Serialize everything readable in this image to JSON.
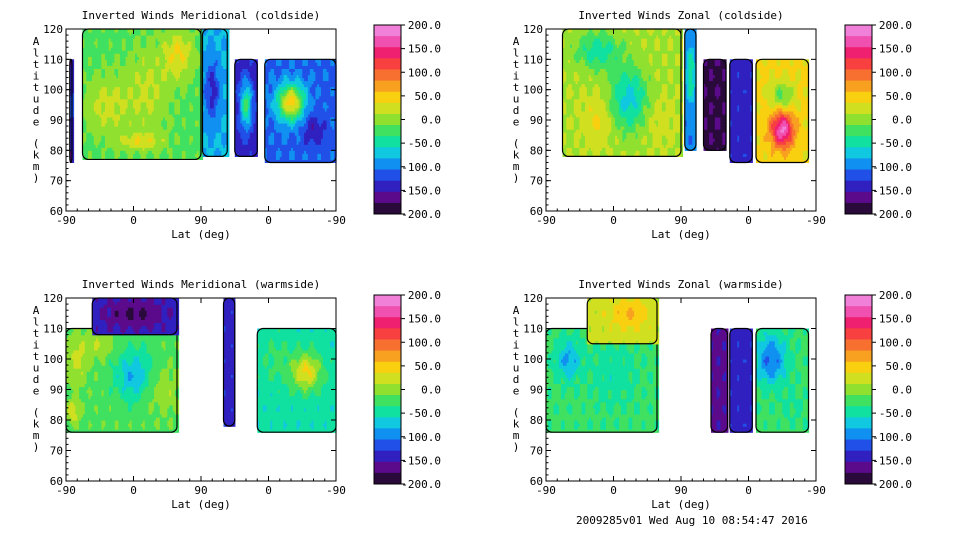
{
  "footer_text": "2009285v01 Wed Aug 10 08:54:47 2016",
  "colorbar": {
    "ticks": [
      "200.0",
      "150.0",
      "100.0",
      "50.0",
      "0.0",
      "-50.0",
      "-100.0",
      "-150.0",
      "-200.0"
    ],
    "colors": [
      "#2a0a3a",
      "#5a0a8a",
      "#3020c0",
      "#2050e8",
      "#1090f0",
      "#10c8e0",
      "#10e0a0",
      "#40e060",
      "#90e030",
      "#d0e020",
      "#f8d010",
      "#f8a020",
      "#f87030",
      "#f84040",
      "#f02070",
      "#f050b0",
      "#f080d8"
    ]
  },
  "chart_data": [
    {
      "type": "heatmap",
      "title": "Inverted Winds Meridional (coldside)",
      "xlabel": "Lat (deg)",
      "ylabel": "Altitude (km)",
      "x_ticks": [
        "-90",
        "0",
        "90",
        "0",
        "-90"
      ],
      "y_ticks": [
        "60",
        "70",
        "80",
        "90",
        "100",
        "110",
        "120"
      ],
      "ylim": [
        60,
        120
      ],
      "zlim": [
        -200,
        200
      ],
      "segments": [
        {
          "x": [
            -85,
            -82
          ],
          "y": [
            76,
            110
          ],
          "base": -150,
          "blobs": [
            [
              -83,
              95,
              6,
              8,
              30
            ]
          ]
        },
        {
          "x": [
            -68,
            90
          ],
          "y": [
            77,
            120
          ],
          "base": -20,
          "blobs": [
            [
              -35,
              95,
              30,
              10,
              40
            ],
            [
              20,
              100,
              30,
              15,
              35
            ],
            [
              60,
              112,
              20,
              8,
              55
            ],
            [
              10,
              83,
              30,
              3,
              45
            ]
          ]
        },
        {
          "x": [
            92,
            125
          ],
          "y": [
            78,
            120
          ],
          "base": -80,
          "blobs": [
            [
              105,
              100,
              10,
              10,
              -60
            ]
          ]
        },
        {
          "x": [
            135,
            165
          ],
          "y": [
            78,
            110
          ],
          "base": -140,
          "blobs": [
            [
              150,
              95,
              8,
              8,
              110
            ]
          ]
        },
        {
          "x": [
            175,
            270
          ],
          "y": [
            76,
            110
          ],
          "base": -110,
          "blobs": [
            [
              210,
              96,
              18,
              6,
              160
            ],
            [
              240,
              87,
              15,
              6,
              -40
            ]
          ]
        }
      ]
    },
    {
      "type": "heatmap",
      "title": "Inverted Winds Zonal (coldside)",
      "xlabel": "Lat (deg)",
      "ylabel": "Altitude (km)",
      "x_ticks": [
        "-90",
        "0",
        "90",
        "0",
        "-90"
      ],
      "y_ticks": [
        "60",
        "70",
        "80",
        "90",
        "100",
        "110",
        "120"
      ],
      "ylim": [
        60,
        120
      ],
      "zlim": [
        -200,
        200
      ],
      "segments": [
        {
          "x": [
            -68,
            90
          ],
          "y": [
            78,
            120
          ],
          "base": 10,
          "blobs": [
            [
              -20,
              90,
              20,
              8,
              30
            ],
            [
              20,
              97,
              25,
              10,
              -80
            ],
            [
              60,
              90,
              20,
              8,
              15
            ],
            [
              -20,
              113,
              30,
              6,
              -60
            ]
          ]
        },
        {
          "x": [
            95,
            110
          ],
          "y": [
            80,
            120
          ],
          "base": -100,
          "blobs": [
            [
              103,
              105,
              6,
              10,
              60
            ]
          ]
        },
        {
          "x": [
            120,
            150
          ],
          "y": [
            80,
            110
          ],
          "base": -180,
          "blobs": []
        },
        {
          "x": [
            155,
            185
          ],
          "y": [
            76,
            110
          ],
          "base": -140,
          "blobs": []
        },
        {
          "x": [
            190,
            260
          ],
          "y": [
            76,
            110
          ],
          "base": 40,
          "blobs": [
            [
              225,
              87,
              15,
              6,
              140
            ],
            [
              225,
              98,
              15,
              5,
              -60
            ]
          ]
        }
      ]
    },
    {
      "type": "heatmap",
      "title": "Inverted Winds Meridional (warmside)",
      "xlabel": "Lat (deg)",
      "ylabel": "Altitude (km)",
      "x_ticks": [
        "-90",
        "0",
        "90",
        "0",
        "-90"
      ],
      "y_ticks": [
        "60",
        "70",
        "80",
        "90",
        "100",
        "110",
        "120"
      ],
      "ylim": [
        60,
        120
      ],
      "zlim": [
        -200,
        200
      ],
      "segments": [
        {
          "x": [
            -90,
            58
          ],
          "y": [
            76,
            110
          ],
          "base": -20,
          "blobs": [
            [
              -75,
              100,
              15,
              8,
              40
            ],
            [
              -45,
              105,
              18,
              5,
              30
            ],
            [
              0,
              95,
              25,
              8,
              -60
            ],
            [
              40,
              90,
              25,
              8,
              25
            ],
            [
              -80,
              83,
              8,
              4,
              50
            ]
          ]
        },
        {
          "x": [
            -55,
            58
          ],
          "y": [
            108,
            120
          ],
          "base": -140,
          "blobs": [
            [
              0,
              115,
              40,
              5,
              -40
            ]
          ]
        },
        {
          "x": [
            120,
            135
          ],
          "y": [
            78,
            120
          ],
          "base": -140,
          "blobs": []
        },
        {
          "x": [
            165,
            270
          ],
          "y": [
            76,
            110
          ],
          "base": -50,
          "blobs": [
            [
              230,
              96,
              20,
              6,
              90
            ],
            [
              190,
              100,
              20,
              8,
              20
            ]
          ]
        }
      ]
    },
    {
      "type": "heatmap",
      "title": "Inverted Winds Zonal (warmside)",
      "xlabel": "Lat (deg)",
      "ylabel": "Altitude (km)",
      "x_ticks": [
        "-90",
        "0",
        "90",
        "0",
        "-90"
      ],
      "y_ticks": [
        "60",
        "70",
        "80",
        "90",
        "100",
        "110",
        "120"
      ],
      "ylim": [
        60,
        120
      ],
      "zlim": [
        -200,
        200
      ],
      "segments": [
        {
          "x": [
            -90,
            58
          ],
          "y": [
            76,
            110
          ],
          "base": -30,
          "blobs": [
            [
              0,
              95,
              30,
              10,
              -20
            ],
            [
              -60,
              100,
              15,
              6,
              -60
            ]
          ]
        },
        {
          "x": [
            -35,
            58
          ],
          "y": [
            105,
            120
          ],
          "base": 20,
          "blobs": [
            [
              20,
              115,
              25,
              5,
              40
            ]
          ]
        },
        {
          "x": [
            130,
            152
          ],
          "y": [
            76,
            110
          ],
          "base": -160,
          "blobs": []
        },
        {
          "x": [
            155,
            185
          ],
          "y": [
            76,
            110
          ],
          "base": -140,
          "blobs": []
        },
        {
          "x": [
            190,
            260
          ],
          "y": [
            76,
            110
          ],
          "base": -30,
          "blobs": [
            [
              210,
              100,
              20,
              8,
              -80
            ],
            [
              240,
              85,
              15,
              6,
              -10
            ]
          ]
        }
      ]
    }
  ]
}
